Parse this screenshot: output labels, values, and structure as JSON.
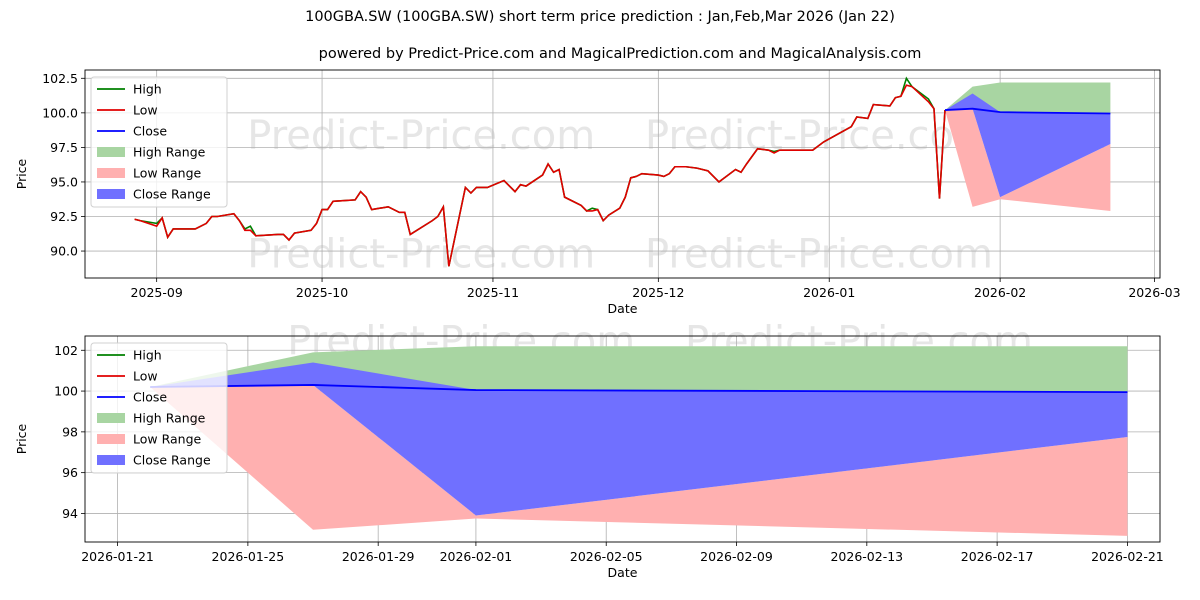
{
  "title": "100GBA.SW (100GBA.SW) short term price prediction : Jan,Feb,Mar 2026 (Jan 22)",
  "subtitle": "powered by Predict-Price.com and MagicalPrediction.com and MagicalAnalysis.com",
  "watermark": "Predict-Price.com",
  "colors": {
    "high": "#008000",
    "low": "#e00000",
    "close": "#0000ff",
    "high_range": "#a8d5a2",
    "low_range": "#ffb0b0",
    "close_range": "#7070ff"
  },
  "legend": [
    "High",
    "Low",
    "Close",
    "High Range",
    "Low Range",
    "Close Range"
  ],
  "chart_data": [
    {
      "type": "line",
      "xlabel": "Date",
      "ylabel": "Price",
      "ylim": [
        88.05,
        103.1
      ],
      "xlim": [
        "2025-08-19",
        "2026-03-02"
      ],
      "grid": true,
      "legend_placement": "top-left",
      "y_ticks": [
        "90.0",
        "92.5",
        "95.0",
        "97.5",
        "100.0",
        "102.5"
      ],
      "y_tick_values": [
        90,
        92.5,
        95,
        97.5,
        100,
        102.5
      ],
      "x_ticks": [
        "2025-09",
        "2025-10",
        "2025-11",
        "2025-12",
        "2026-01",
        "2026-02",
        "2026-03"
      ],
      "x_tick_dates": [
        "2025-09-01",
        "2025-10-01",
        "2025-11-01",
        "2025-12-01",
        "2026-01-01",
        "2026-02-01",
        "2026-03-01"
      ],
      "history": [
        [
          "2025-08-28",
          92.3,
          92.3
        ],
        [
          "2025-08-29",
          92.2,
          92.2
        ],
        [
          "2025-09-01",
          92.0,
          91.8
        ],
        [
          "2025-09-02",
          92.4,
          92.4
        ],
        [
          "2025-09-03",
          91.0,
          91.0
        ],
        [
          "2025-09-04",
          91.6,
          91.6
        ],
        [
          "2025-09-08",
          91.6,
          91.6
        ],
        [
          "2025-09-10",
          92.0,
          92.0
        ],
        [
          "2025-09-11",
          92.5,
          92.5
        ],
        [
          "2025-09-12",
          92.5,
          92.5
        ],
        [
          "2025-09-15",
          92.7,
          92.7
        ],
        [
          "2025-09-16",
          92.2,
          92.2
        ],
        [
          "2025-09-17",
          91.6,
          91.5
        ],
        [
          "2025-09-18",
          91.8,
          91.5
        ],
        [
          "2025-09-19",
          91.1,
          91.1
        ],
        [
          "2025-09-23",
          91.2,
          91.2
        ],
        [
          "2025-09-24",
          91.2,
          91.2
        ],
        [
          "2025-09-25",
          90.8,
          90.8
        ],
        [
          "2025-09-26",
          91.3,
          91.3
        ],
        [
          "2025-09-29",
          91.5,
          91.5
        ],
        [
          "2025-09-30",
          92.0,
          92.0
        ],
        [
          "2025-10-01",
          93.0,
          93.0
        ],
        [
          "2025-10-02",
          93.0,
          93.0
        ],
        [
          "2025-10-03",
          93.6,
          93.6
        ],
        [
          "2025-10-07",
          93.7,
          93.7
        ],
        [
          "2025-10-08",
          94.3,
          94.3
        ],
        [
          "2025-10-09",
          93.9,
          93.9
        ],
        [
          "2025-10-10",
          93.0,
          93.0
        ],
        [
          "2025-10-13",
          93.2,
          93.2
        ],
        [
          "2025-10-14",
          93.0,
          93.0
        ],
        [
          "2025-10-15",
          92.8,
          92.8
        ],
        [
          "2025-10-16",
          92.8,
          92.8
        ],
        [
          "2025-10-17",
          91.2,
          91.2
        ],
        [
          "2025-10-21",
          92.2,
          92.2
        ],
        [
          "2025-10-22",
          92.5,
          92.5
        ],
        [
          "2025-10-23",
          93.2,
          93.2
        ],
        [
          "2025-10-24",
          88.9,
          88.9
        ],
        [
          "2025-10-27",
          94.6,
          94.6
        ],
        [
          "2025-10-28",
          94.2,
          94.2
        ],
        [
          "2025-10-29",
          94.6,
          94.6
        ],
        [
          "2025-10-31",
          94.6,
          94.6
        ],
        [
          "2025-11-03",
          95.1,
          95.1
        ],
        [
          "2025-11-05",
          94.3,
          94.3
        ],
        [
          "2025-11-06",
          94.8,
          94.8
        ],
        [
          "2025-11-07",
          94.7,
          94.7
        ],
        [
          "2025-11-10",
          95.5,
          95.5
        ],
        [
          "2025-11-11",
          96.3,
          96.3
        ],
        [
          "2025-11-12",
          95.7,
          95.7
        ],
        [
          "2025-11-13",
          95.9,
          95.9
        ],
        [
          "2025-11-14",
          93.9,
          93.9
        ],
        [
          "2025-11-17",
          93.3,
          93.3
        ],
        [
          "2025-11-18",
          92.9,
          92.9
        ],
        [
          "2025-11-19",
          93.1,
          92.9
        ],
        [
          "2025-11-20",
          93.0,
          93.0
        ],
        [
          "2025-11-21",
          92.2,
          92.2
        ],
        [
          "2025-11-22",
          92.6,
          92.6
        ],
        [
          "2025-11-24",
          93.1,
          93.1
        ],
        [
          "2025-11-25",
          93.9,
          93.9
        ],
        [
          "2025-11-26",
          95.3,
          95.3
        ],
        [
          "2025-11-27",
          95.4,
          95.4
        ],
        [
          "2025-11-28",
          95.6,
          95.6
        ],
        [
          "2025-12-01",
          95.5,
          95.5
        ],
        [
          "2025-12-02",
          95.4,
          95.4
        ],
        [
          "2025-12-03",
          95.6,
          95.6
        ],
        [
          "2025-12-04",
          96.1,
          96.1
        ],
        [
          "2025-12-06",
          96.1,
          96.1
        ],
        [
          "2025-12-08",
          96.0,
          96.0
        ],
        [
          "2025-12-10",
          95.8,
          95.8
        ],
        [
          "2025-12-12",
          95.0,
          95.0
        ],
        [
          "2025-12-15",
          95.9,
          95.9
        ],
        [
          "2025-12-16",
          95.7,
          95.7
        ],
        [
          "2025-12-17",
          96.3,
          96.3
        ],
        [
          "2025-12-19",
          97.4,
          97.4
        ],
        [
          "2025-12-21",
          97.3,
          97.3
        ],
        [
          "2025-12-22",
          97.2,
          97.1
        ],
        [
          "2025-12-23",
          97.3,
          97.3
        ],
        [
          "2025-12-29",
          97.3,
          97.3
        ],
        [
          "2025-12-31",
          97.9,
          97.9
        ],
        [
          "2026-01-05",
          99.0,
          99.0
        ],
        [
          "2026-01-06",
          99.7,
          99.7
        ],
        [
          "2026-01-08",
          99.6,
          99.6
        ],
        [
          "2026-01-09",
          100.6,
          100.6
        ],
        [
          "2026-01-12",
          100.5,
          100.5
        ],
        [
          "2026-01-13",
          101.1,
          101.1
        ],
        [
          "2026-01-14",
          101.2,
          101.2
        ],
        [
          "2026-01-15",
          102.5,
          102.0
        ],
        [
          "2026-01-16",
          101.9,
          101.9
        ],
        [
          "2026-01-19",
          101.0,
          100.8
        ],
        [
          "2026-01-20",
          100.3,
          100.3
        ],
        [
          "2026-01-21",
          93.8,
          93.8
        ],
        [
          "2026-01-22",
          100.2,
          100.2
        ]
      ],
      "prediction": {
        "dates": [
          "2026-01-22",
          "2026-01-27",
          "2026-02-01",
          "2026-02-21"
        ],
        "close": [
          100.2,
          100.3,
          100.05,
          99.95
        ],
        "high_range": [
          [
            100.2,
            100.2
          ],
          [
            100.3,
            101.9
          ],
          [
            100.05,
            102.2
          ],
          [
            99.95,
            102.2
          ]
        ],
        "close_range": [
          [
            100.2,
            100.2
          ],
          [
            100.3,
            101.4
          ],
          [
            93.9,
            100.05
          ],
          [
            97.75,
            99.95
          ]
        ],
        "low_range": [
          [
            100.2,
            100.2
          ],
          [
            93.2,
            100.3
          ],
          [
            93.75,
            93.9
          ],
          [
            92.9,
            97.75
          ]
        ]
      }
    },
    {
      "type": "line",
      "xlabel": "Date",
      "ylabel": "Price",
      "ylim": [
        92.6,
        102.7
      ],
      "xlim": [
        "2026-01-20",
        "2026-02-22"
      ],
      "grid": true,
      "legend_placement": "top-left",
      "y_ticks": [
        "94",
        "96",
        "98",
        "100",
        "102"
      ],
      "y_tick_values": [
        94,
        96,
        98,
        100,
        102
      ],
      "x_ticks": [
        "2026-01-21",
        "2026-01-25",
        "2026-01-29",
        "2026-02-01",
        "2026-02-05",
        "2026-02-09",
        "2026-02-13",
        "2026-02-17",
        "2026-02-21"
      ],
      "x_tick_dates": [
        "2026-01-21",
        "2026-01-25",
        "2026-01-29",
        "2026-02-01",
        "2026-02-05",
        "2026-02-09",
        "2026-02-13",
        "2026-02-17",
        "2026-02-21"
      ]
    }
  ]
}
